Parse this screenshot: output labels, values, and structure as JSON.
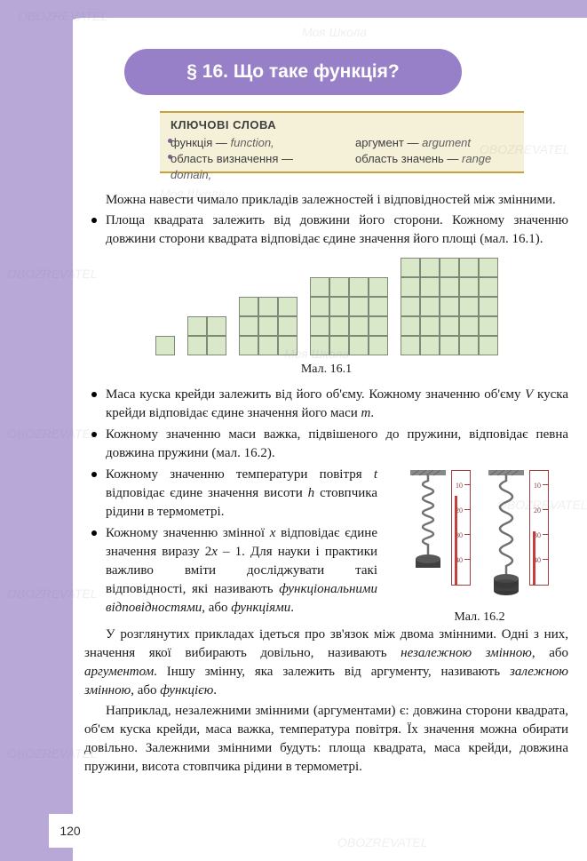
{
  "header": {
    "title": "§ 16. Що таке функція?"
  },
  "keywords": {
    "title": "КЛЮЧОВІ СЛОВА",
    "c1a": "функція — ",
    "c1a_it": "function,",
    "c1b": "область визначення — ",
    "c1b_it": "domain,",
    "c2a": "аргумент — ",
    "c2a_it": "argument",
    "c2b": "область значень — ",
    "c2b_it": "range"
  },
  "body": {
    "p1": "Можна навести чимало прикладів залежностей і відповідностей між змінними.",
    "b1": "Площа квадрата залежить від довжини його сторони. Кожному значенню довжини сторони квадрата відповідає єдине значення його площі (мал. 16.1).",
    "fig1_caption": "Мал. 16.1",
    "b2_a": "Маса куска крейди залежить від його об'єму. Кожному значенню об'єму ",
    "b2_v": "V",
    "b2_b": " куска крейди відповідає єдине значення його маси ",
    "b2_m": "m",
    "b2_c": ".",
    "b3": "Кожному значенню маси важка, підвішеного до пружини, відповідає певна довжина пружини (мал. 16.2).",
    "b4_a": "Кожному значенню температури повітря ",
    "b4_t": "t",
    "b4_b": " відповідає єдине значення висоти ",
    "b4_h": "h",
    "b4_c": " стовпчика рідини в термометрі.",
    "b5_a": "Кожному значенню змінної ",
    "b5_x": "x",
    "b5_b": " відповідає єдине значення виразу 2",
    "b5_x2": "x",
    "b5_c": " – 1. Для науки і практики важливо вміти досліджувати такі відповідності, які називають ",
    "b5_it1": "функціональними відповідностями",
    "b5_d": ", або ",
    "b5_it2": "функціями",
    "b5_e": ".",
    "fig2_caption": "Мал. 16.2",
    "p2_a": "У розглянутих прикладах ідеться про зв'язок між двома змінними. Одні з них, значення якої вибирають довільно, називають ",
    "p2_it1": "незалежною змінною",
    "p2_b": ", або ",
    "p2_it2": "аргументом",
    "p2_c": ". Іншу змінну, яка залежить від аргументу, називають ",
    "p2_it3": "залежною змінною",
    "p2_d": ", або ",
    "p2_it4": "функцією",
    "p2_e": ".",
    "p3": "Наприклад, незалежними змінними (аргументами) є: довжина сторони квадрата, об'єм куска крейди, маса важка, температура повітря. Їх значення можна обирати довільно. Залежними змінними будуть: площа квадрата, маса крейди, довжина пружини, висота стовпчика рідини в термометрі."
  },
  "page_number": "120",
  "figure_squares": {
    "sizes": [
      1,
      2,
      3,
      4,
      5
    ],
    "cell_bg": "#d8e8c8",
    "cell_border": "#808878"
  },
  "thermo": {
    "ticks": [
      10,
      20,
      30,
      40
    ],
    "fill_height_1": 100,
    "fill_height_2": 60,
    "border": "#a04040",
    "fill": "#c04040"
  },
  "colors": {
    "page_bg": "#b8a8d8",
    "header_pill": "#9880c8",
    "keywords_bg": "#f5f0d8",
    "keywords_border": "#c8a040"
  },
  "watermarks": [
    "OBOZREVATEL",
    "Моя Школа"
  ]
}
